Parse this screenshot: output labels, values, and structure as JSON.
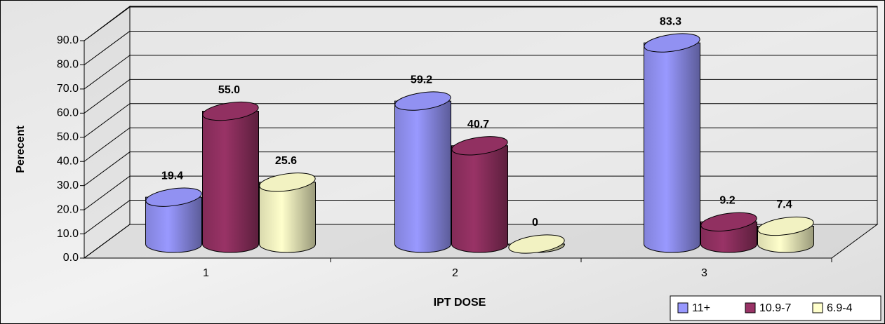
{
  "chart_data": {
    "type": "bar3d",
    "x_label": "IPT DOSE",
    "y_label": "Perecent",
    "categories": [
      "1",
      "2",
      "3"
    ],
    "series": [
      {
        "name": "11+",
        "color": "#9999ff",
        "values": [
          19.4,
          59.2,
          83.3
        ],
        "value_labels": [
          "19.4",
          "59.2",
          "83.3"
        ]
      },
      {
        "name": "10.9-7",
        "color": "#993366",
        "values": [
          55.0,
          40.7,
          9.2
        ],
        "value_labels": [
          "55.0",
          "40.7",
          "9.2"
        ]
      },
      {
        "name": "6.9-4",
        "color": "#ffffcc",
        "values": [
          25.6,
          0,
          7.4
        ],
        "value_labels": [
          "25.6",
          "0",
          "7.4"
        ]
      }
    ],
    "ylim": [
      0,
      90
    ],
    "yticks": [
      {
        "value": 0,
        "label": "0.0"
      },
      {
        "value": 10,
        "label": "10.0"
      },
      {
        "value": 20,
        "label": "20.0"
      },
      {
        "value": 30,
        "label": "30.0"
      },
      {
        "value": 40,
        "label": "40.0"
      },
      {
        "value": 50,
        "label": "50.0"
      },
      {
        "value": 60,
        "label": "60.0"
      },
      {
        "value": 70,
        "label": "70.0"
      },
      {
        "value": 80,
        "label": "80.0"
      },
      {
        "value": 90,
        "label": "90.0"
      }
    ],
    "grid": true,
    "legend": "lower right"
  }
}
